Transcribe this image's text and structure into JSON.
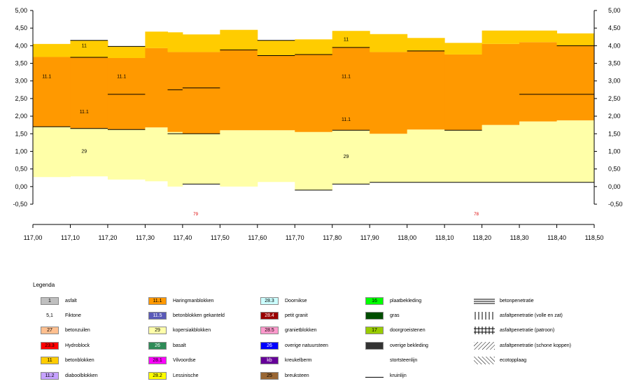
{
  "chart_data": {
    "type": "area",
    "xlim": [
      117.0,
      118.5
    ],
    "ylim": [
      -0.5,
      5.0
    ],
    "x_ticks": [
      "117,00",
      "117,10",
      "117,20",
      "117,30",
      "117,40",
      "117,50",
      "117,60",
      "117,70",
      "117,80",
      "117,90",
      "118,00",
      "118,10",
      "118,20",
      "118,30",
      "118,40",
      "118,50"
    ],
    "y_ticks": [
      "5,00",
      "4,50",
      "4,00",
      "3,50",
      "3,00",
      "2,50",
      "2,00",
      "1,50",
      "1,00",
      "0,50",
      "0,00",
      "-0,50"
    ],
    "segments": [
      {
        "x0": 117.0,
        "x1": 117.1,
        "bottom": 0.27,
        "light_top": 1.7,
        "orange_top": 3.68,
        "top": 4.05
      },
      {
        "x0": 117.1,
        "x1": 117.2,
        "bottom": 0.29,
        "light_top": 1.65,
        "orange_top": 3.67,
        "top": 4.15
      },
      {
        "x0": 117.2,
        "x1": 117.3,
        "bottom": 0.2,
        "light_top": 1.62,
        "orange_top": 3.65,
        "top": 3.98
      },
      {
        "x0": 117.3,
        "x1": 117.36,
        "bottom": 0.15,
        "light_top": 1.68,
        "orange_top": 3.93,
        "top": 4.4
      },
      {
        "x0": 117.36,
        "x1": 117.4,
        "bottom": 0.0,
        "light_top": 1.55,
        "orange_top": 3.82,
        "top": 4.38
      },
      {
        "x0": 117.4,
        "x1": 117.5,
        "bottom": 0.07,
        "light_top": 1.5,
        "orange_top": 3.82,
        "top": 4.32
      },
      {
        "x0": 117.5,
        "x1": 117.6,
        "bottom": 0.0,
        "light_top": 1.6,
        "orange_top": 3.88,
        "top": 4.45
      },
      {
        "x0": 117.6,
        "x1": 117.7,
        "bottom": 0.13,
        "light_top": 1.6,
        "orange_top": 3.72,
        "top": 4.15
      },
      {
        "x0": 117.7,
        "x1": 117.8,
        "bottom": -0.1,
        "light_top": 1.55,
        "orange_top": 3.75,
        "top": 4.18
      },
      {
        "x0": 117.8,
        "x1": 117.9,
        "bottom": 0.07,
        "light_top": 1.6,
        "orange_top": 3.95,
        "top": 4.42
      },
      {
        "x0": 117.9,
        "x1": 118.0,
        "bottom": 0.12,
        "light_top": 1.5,
        "orange_top": 3.82,
        "top": 4.33
      },
      {
        "x0": 118.0,
        "x1": 118.1,
        "bottom": 0.12,
        "light_top": 1.62,
        "orange_top": 3.85,
        "top": 4.22
      },
      {
        "x0": 118.1,
        "x1": 118.2,
        "bottom": 0.12,
        "light_top": 1.6,
        "orange_top": 3.75,
        "top": 4.08
      },
      {
        "x0": 118.2,
        "x1": 118.3,
        "bottom": 0.12,
        "light_top": 1.75,
        "orange_top": 4.05,
        "top": 4.43
      },
      {
        "x0": 118.3,
        "x1": 118.4,
        "bottom": 0.12,
        "light_top": 1.85,
        "orange_top": 4.1,
        "top": 4.43
      },
      {
        "x0": 118.4,
        "x1": 118.5,
        "bottom": 0.12,
        "light_top": 1.88,
        "orange_top": 4.0,
        "top": 4.35
      }
    ],
    "black_lines": [
      {
        "x0": 117.0,
        "x1": 117.1,
        "y": 1.7
      },
      {
        "x0": 117.1,
        "x1": 117.2,
        "y": 1.65
      },
      {
        "x0": 117.2,
        "x1": 117.3,
        "y": 1.62
      },
      {
        "x0": 117.36,
        "x1": 117.5,
        "y": 1.5
      },
      {
        "x0": 117.8,
        "x1": 117.9,
        "y": 1.6
      },
      {
        "x0": 118.1,
        "x1": 118.2,
        "y": 1.6
      },
      {
        "x0": 117.1,
        "x1": 117.2,
        "y": 3.67
      },
      {
        "x0": 117.1,
        "x1": 117.2,
        "y": 4.15
      },
      {
        "x0": 117.2,
        "x1": 117.3,
        "y": 3.98
      },
      {
        "x0": 117.2,
        "x1": 117.3,
        "y": 2.62
      },
      {
        "x0": 117.36,
        "x1": 117.4,
        "y": 2.75
      },
      {
        "x0": 117.4,
        "x1": 117.5,
        "y": 2.8
      },
      {
        "x0": 117.5,
        "x1": 117.6,
        "y": 3.88
      },
      {
        "x0": 117.6,
        "x1": 117.7,
        "y": 3.72
      },
      {
        "x0": 117.6,
        "x1": 117.7,
        "y": 4.15
      },
      {
        "x0": 117.7,
        "x1": 117.8,
        "y": 3.75
      },
      {
        "x0": 117.8,
        "x1": 117.9,
        "y": 3.95
      },
      {
        "x0": 118.0,
        "x1": 118.1,
        "y": 3.85
      },
      {
        "x0": 118.3,
        "x1": 118.5,
        "y": 2.62
      },
      {
        "x0": 118.4,
        "x1": 118.5,
        "y": 4.0
      },
      {
        "x0": 117.4,
        "x1": 117.5,
        "y": 0.07
      },
      {
        "x0": 117.7,
        "x1": 117.8,
        "y": -0.1
      },
      {
        "x0": 117.8,
        "x1": 117.9,
        "y": 0.07
      },
      {
        "x0": 117.9,
        "x1": 118.5,
        "y": 0.12
      }
    ],
    "labels": [
      {
        "x": 117.037,
        "y": 3.12,
        "text": "11.1"
      },
      {
        "x": 117.237,
        "y": 3.12,
        "text": "11.1"
      },
      {
        "x": 117.137,
        "y": 4.0,
        "text": "11"
      },
      {
        "x": 117.137,
        "y": 2.12,
        "text": "11.1"
      },
      {
        "x": 117.137,
        "y": 1.0,
        "text": "29"
      },
      {
        "x": 117.837,
        "y": 4.18,
        "text": "11"
      },
      {
        "x": 117.837,
        "y": 3.12,
        "text": "11.1"
      },
      {
        "x": 117.837,
        "y": 1.9,
        "text": "11.1"
      },
      {
        "x": 117.837,
        "y": 0.85,
        "text": "29"
      }
    ],
    "red_labels": [
      {
        "x": 117.435,
        "y": -0.82,
        "text": "79"
      },
      {
        "x": 118.185,
        "y": -0.82,
        "text": "78"
      }
    ]
  },
  "legend": {
    "title": "Legenda",
    "items": [
      {
        "code": "1",
        "color": "#bfbfbf",
        "text": "asfalt",
        "fg": "#000"
      },
      {
        "code": "5,1",
        "color": "#ffffff",
        "text": "Fiktone",
        "fg": "#000",
        "noborder": true
      },
      {
        "code": "27",
        "color": "#ffbf8f",
        "text": "betonzuilen",
        "fg": "#000"
      },
      {
        "code": "23.3",
        "color": "#ff0000",
        "text": "Hydroblock",
        "fg": "#000"
      },
      {
        "code": "11",
        "color": "#ffcc00",
        "text": "betonblokken",
        "fg": "#000"
      },
      {
        "code": "11.2",
        "color": "#c6a3ff",
        "text": "diaboolblokken",
        "fg": "#000"
      },
      {
        "code": "11.1",
        "color": "#ff9900",
        "text": "Haringmanblokken",
        "fg": "#000"
      },
      {
        "code": "11.5",
        "color": "#5a5ab8",
        "text": "betonblokken gekanteld",
        "fg": "#fff"
      },
      {
        "code": "29",
        "color": "#ffffaa",
        "text": "kopersiakblokken",
        "fg": "#000"
      },
      {
        "code": "26",
        "color": "#2e8b57",
        "text": "basalt",
        "fg": "#fff"
      },
      {
        "code": "28.1",
        "color": "#ff00ff",
        "text": "Vilvoordse",
        "fg": "#000"
      },
      {
        "code": "28.2",
        "color": "#ffff00",
        "text": "Lessinische",
        "fg": "#000"
      },
      {
        "code": "28.3",
        "color": "#ccffff",
        "text": "Doornikse",
        "fg": "#000"
      },
      {
        "code": "28.4",
        "color": "#990000",
        "text": "petit granit",
        "fg": "#fff"
      },
      {
        "code": "28.5",
        "color": "#ff99cc",
        "text": "granietblokken",
        "fg": "#000"
      },
      {
        "code": "26",
        "color": "#0000ff",
        "text": "overige natuursteen",
        "fg": "#fff"
      },
      {
        "code": "kb",
        "color": "#660099",
        "text": "kreukelberm",
        "fg": "#fff"
      },
      {
        "code": "25",
        "color": "#996633",
        "text": "breuksteen",
        "fg": "#000"
      },
      {
        "code": "16",
        "color": "#00ff00",
        "text": "plaatbekleding",
        "fg": "#000"
      },
      {
        "code": "",
        "color": "#004d00",
        "text": "gras",
        "fg": "#fff"
      },
      {
        "code": "17",
        "color": "#99cc00",
        "text": "doorgroeistenen",
        "fg": "#000"
      },
      {
        "code": "",
        "color": "#333333",
        "text": "overige bekleding",
        "fg": "#fff"
      },
      {
        "code": "",
        "color": "",
        "text": "stortsteenlijn",
        "fg": "#000",
        "noborder": true
      },
      {
        "code": "",
        "color": "",
        "text": "kruinlijn",
        "fg": "#000",
        "line": true
      }
    ],
    "patterns": [
      {
        "symbol": "double-line-icon",
        "text": "betonpenetratie"
      },
      {
        "symbol": "vertical-bars-icon",
        "text": "asfaltpenetratie (volle en zat)"
      },
      {
        "symbol": "grid-hatch-icon",
        "text": "asfaltpenetratie (patroon)"
      },
      {
        "symbol": "diagonal-hatch-icon",
        "text": "asfaltpenetratie (schone koppen)"
      },
      {
        "symbol": "reverse-hatch-icon",
        "text": "ecotopplaag"
      }
    ]
  },
  "colors": {
    "light": "#ffffa8",
    "orange": "#ff9900",
    "yellow": "#ffcc00"
  }
}
